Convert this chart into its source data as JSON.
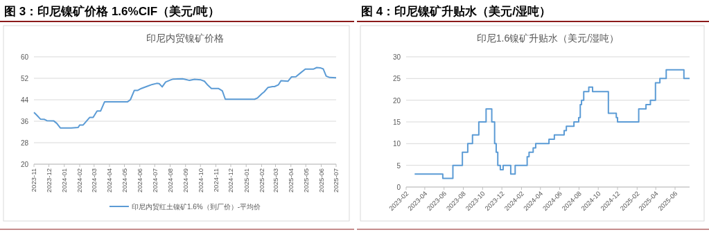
{
  "chart_data": [
    {
      "type": "line",
      "title": "图 3：印尼镍矿价格 1.6%CIF（美元/吨）",
      "subtitle": "印尼内贸镍矿价格",
      "x": [
        "2023-11-01",
        "2023-11-06",
        "2023-11-14",
        "2023-11-22",
        "2023-11-27",
        "2023-12-11",
        "2023-12-17",
        "2023-12-24",
        "2024-01-15",
        "2024-01-29",
        "2024-02-01",
        "2024-02-08",
        "2024-02-21",
        "2024-02-28",
        "2024-03-07",
        "2024-03-14",
        "2024-03-22",
        "2024-05-07",
        "2024-05-13",
        "2024-05-21",
        "2024-05-28",
        "2024-06-04",
        "2024-06-17",
        "2024-06-26",
        "2024-07-05",
        "2024-07-10",
        "2024-07-16",
        "2024-07-23",
        "2024-08-02",
        "2024-08-07",
        "2024-08-26",
        "2024-08-31",
        "2024-09-09",
        "2024-09-19",
        "2024-10-02",
        "2024-10-09",
        "2024-10-16",
        "2024-10-23",
        "2024-11-06",
        "2024-11-14",
        "2024-11-20",
        "2025-01-18",
        "2025-01-24",
        "2025-02-02",
        "2025-02-06",
        "2025-02-14",
        "2025-02-23",
        "2025-02-27",
        "2025-03-07",
        "2025-03-12",
        "2025-03-26",
        "2025-04-02",
        "2025-04-11",
        "2025-04-21",
        "2025-04-30",
        "2025-05-16",
        "2025-05-23",
        "2025-05-30",
        "2025-06-05",
        "2025-06-11",
        "2025-06-18",
        "2025-07-01"
      ],
      "series": [
        {
          "name": "印尼内贸红土镍矿1.6%（到厂价）-平均价",
          "color": "#5b9bd5",
          "values": [
            39.3,
            38.4,
            36.8,
            36.7,
            36.2,
            36.1,
            35.2,
            33.5,
            33.5,
            33.7,
            34.6,
            34.6,
            37.4,
            37.4,
            39.8,
            39.8,
            43.2,
            43.2,
            44.0,
            47.5,
            47.5,
            48.2,
            49.1,
            49.7,
            50.1,
            50.0,
            48.8,
            50.6,
            51.4,
            51.7,
            51.8,
            51.6,
            51.2,
            51.6,
            51.4,
            50.9,
            49.4,
            48.2,
            48.2,
            47.3,
            44.2,
            44.2,
            44.7,
            46.3,
            46.9,
            48.6,
            48.9,
            48.9,
            49.6,
            51.1,
            50.9,
            52.5,
            52.6,
            54.1,
            55.4,
            55.4,
            56.0,
            55.9,
            55.5,
            52.8,
            52.3,
            52.2
          ]
        }
      ],
      "xlim": [
        "2023-11-01",
        "2025-07-01"
      ],
      "xticks": [
        {
          "value": "2023-11-01",
          "label": "2023-11"
        },
        {
          "value": "2023-12-01",
          "label": "2023-12"
        },
        {
          "value": "2024-01-01",
          "label": "2024-01"
        },
        {
          "value": "2024-02-01",
          "label": "2024-02"
        },
        {
          "value": "2024-03-01",
          "label": "2024-03"
        },
        {
          "value": "2024-04-01",
          "label": "2024-04"
        },
        {
          "value": "2024-05-01",
          "label": "2024-05"
        },
        {
          "value": "2024-06-01",
          "label": "2024-06"
        },
        {
          "value": "2024-07-01",
          "label": "2024-07"
        },
        {
          "value": "2024-08-01",
          "label": "2024-08"
        },
        {
          "value": "2024-09-01",
          "label": "2024-09"
        },
        {
          "value": "2024-10-01",
          "label": "2024-10"
        },
        {
          "value": "2024-11-01",
          "label": "2024-11"
        },
        {
          "value": "2024-12-01",
          "label": "2024-12"
        },
        {
          "value": "2025-01-01",
          "label": "2025-01"
        },
        {
          "value": "2025-02-01",
          "label": "2025-02"
        },
        {
          "value": "2025-03-01",
          "label": "2025-03"
        },
        {
          "value": "2025-04-01",
          "label": "2025-04"
        },
        {
          "value": "2025-05-01",
          "label": "2025-05"
        },
        {
          "value": "2025-06-01",
          "label": "2025-06"
        },
        {
          "value": "2025-07-01",
          "label": "2025-07"
        }
      ],
      "ylim": [
        20,
        60
      ],
      "yticks": [
        20,
        28,
        36,
        44,
        52,
        60
      ],
      "grid": "y",
      "legend": "bottom"
    },
    {
      "type": "step",
      "title": "图 4：印尼镍矿升贴水（美元/湿吨）",
      "subtitle": "印尼1.6镍矿升贴水（美元/湿吨）",
      "x": [
        "2023-02-28",
        "2023-05-28",
        "2023-06-29",
        "2023-07-29",
        "2023-08-15",
        "2023-08-30",
        "2023-09-19",
        "2023-10-12",
        "2023-10-30",
        "2023-11-08",
        "2023-11-13",
        "2023-11-18",
        "2023-11-26",
        "2023-12-05",
        "2023-12-29",
        "2024-01-12",
        "2024-02-19",
        "2024-02-25",
        "2024-03-09",
        "2024-03-17",
        "2024-04-28",
        "2024-05-15",
        "2024-06-15",
        "2024-06-22",
        "2024-07-16",
        "2024-07-31",
        "2024-08-05",
        "2024-08-09",
        "2024-08-16",
        "2024-09-01",
        "2024-09-13",
        "2024-11-02",
        "2024-11-27",
        "2024-12-01",
        "2025-02-06",
        "2025-03-01",
        "2025-03-15",
        "2025-03-31",
        "2025-04-14",
        "2025-05-04",
        "2025-06-29",
        "2025-07-17"
      ],
      "series": [
        {
          "color": "#5b9bd5",
          "values": [
            3,
            2,
            5,
            8,
            10,
            12,
            15,
            18,
            15,
            10,
            8,
            5,
            4,
            5,
            3,
            5,
            7,
            8,
            9,
            10,
            11,
            12,
            13,
            14,
            15,
            16,
            19,
            20,
            22,
            23,
            22,
            17,
            16,
            15,
            18,
            19,
            20,
            24,
            25,
            27,
            25,
            25
          ]
        }
      ],
      "xlim": [
        "2023-02-01",
        "2025-07-17"
      ],
      "xticks": [
        {
          "value": "2023-02-01",
          "label": "2023-02"
        },
        {
          "value": "2023-04-01",
          "label": "2023-04"
        },
        {
          "value": "2023-06-01",
          "label": "2023-06"
        },
        {
          "value": "2023-08-01",
          "label": "2023-08"
        },
        {
          "value": "2023-10-01",
          "label": "2023-10"
        },
        {
          "value": "2023-12-01",
          "label": "2023-12"
        },
        {
          "value": "2024-02-01",
          "label": "2024-02"
        },
        {
          "value": "2024-04-01",
          "label": "2024-04"
        },
        {
          "value": "2024-06-01",
          "label": "2024-06"
        },
        {
          "value": "2024-08-01",
          "label": "2024-08"
        },
        {
          "value": "2024-10-01",
          "label": "2024-10"
        },
        {
          "value": "2024-12-01",
          "label": "2024-12"
        },
        {
          "value": "2025-02-01",
          "label": "2025-02"
        },
        {
          "value": "2025-04-01",
          "label": "2025-04"
        },
        {
          "value": "2025-06-01",
          "label": "2025-06"
        }
      ],
      "ylim": [
        0,
        30
      ],
      "yticks": [
        0,
        5,
        10,
        15,
        20,
        25,
        30
      ],
      "grid": "y"
    }
  ]
}
